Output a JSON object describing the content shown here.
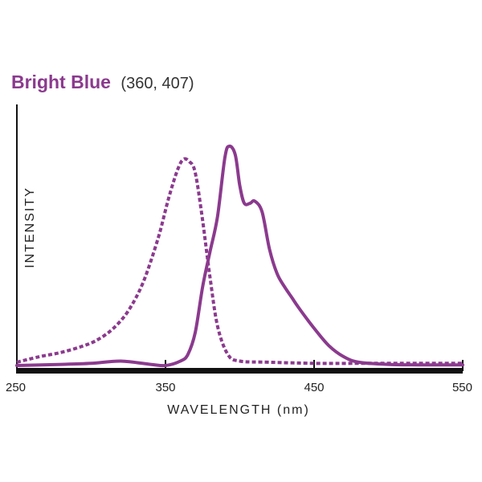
{
  "chart_data": {
    "type": "line",
    "title": "Bright Blue",
    "subtitle": "(360, 407)",
    "xlabel": "WAVELENGTH (nm)",
    "ylabel": "INTENSITY",
    "xlim": [
      250,
      550
    ],
    "ylim": [
      0,
      1
    ],
    "x_ticks": [
      250,
      350,
      450,
      550
    ],
    "grid": false,
    "legend": "none",
    "colors": {
      "curve": "#8b3a8e",
      "title": "#8b3a8e",
      "axis": "#111111"
    },
    "series": [
      {
        "style": "dotted",
        "x": [
          250,
          265,
          280,
          295,
          305,
          315,
          325,
          335,
          345,
          352,
          358,
          362,
          366,
          370,
          375,
          380,
          385,
          392,
          400,
          420,
          450,
          480,
          520,
          550
        ],
        "y": [
          0.015,
          0.04,
          0.06,
          0.09,
          0.12,
          0.17,
          0.25,
          0.38,
          0.58,
          0.76,
          0.89,
          0.94,
          0.93,
          0.88,
          0.66,
          0.4,
          0.18,
          0.05,
          0.02,
          0.015,
          0.01,
          0.01,
          0.01,
          0.01
        ]
      },
      {
        "style": "solid",
        "x": [
          250,
          280,
          300,
          320,
          340,
          350,
          360,
          365,
          370,
          375,
          380,
          385,
          390,
          393,
          397,
          400,
          403,
          407,
          410,
          415,
          420,
          425,
          430,
          435,
          440,
          450,
          460,
          470,
          480,
          500,
          520,
          550
        ],
        "y": [
          0.0,
          0.005,
          0.01,
          0.02,
          0.005,
          0.0,
          0.02,
          0.05,
          0.15,
          0.36,
          0.52,
          0.68,
          0.95,
          1.0,
          0.96,
          0.82,
          0.74,
          0.74,
          0.75,
          0.7,
          0.53,
          0.42,
          0.36,
          0.31,
          0.26,
          0.17,
          0.09,
          0.04,
          0.015,
          0.005,
          0.003,
          0.003
        ]
      }
    ]
  }
}
